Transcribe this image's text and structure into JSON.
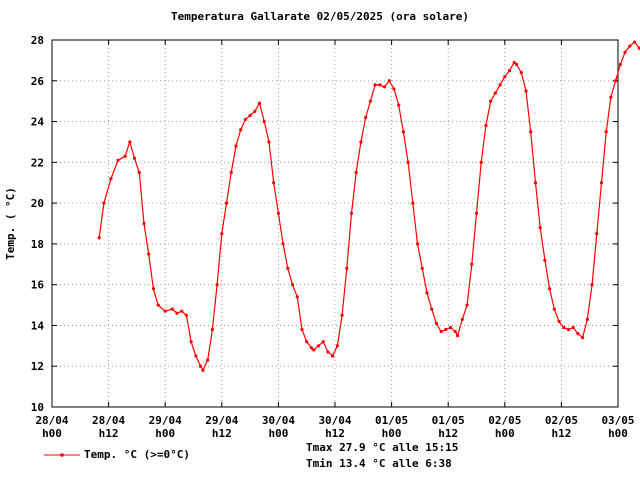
{
  "chart_data": {
    "type": "line",
    "title": "Temperatura Gallarate 02/05/2025 (ora solare)",
    "ylabel": "Temp. ( °C)",
    "ylim": [
      10,
      28
    ],
    "y_ticks": [
      "10",
      "12",
      "14",
      "16",
      "18",
      "20",
      "22",
      "24",
      "26",
      "28"
    ],
    "x_ticks": [
      {
        "day": "28/04",
        "hour": "h00"
      },
      {
        "day": "28/04",
        "hour": "h12"
      },
      {
        "day": "29/04",
        "hour": "h00"
      },
      {
        "day": "29/04",
        "hour": "h12"
      },
      {
        "day": "30/04",
        "hour": "h00"
      },
      {
        "day": "30/04",
        "hour": "h12"
      },
      {
        "day": "01/05",
        "hour": "h00"
      },
      {
        "day": "01/05",
        "hour": "h12"
      },
      {
        "day": "02/05",
        "hour": "h00"
      },
      {
        "day": "02/05",
        "hour": "h12"
      },
      {
        "day": "03/05",
        "hour": "h00"
      }
    ],
    "x_range_hours": [
      0,
      120
    ],
    "grid": true,
    "series": [
      {
        "name": "Temp. °C (>=0°C)",
        "color": "#ff0000",
        "points": [
          [
            10.0,
            18.3
          ],
          [
            11.0,
            20.0
          ],
          [
            12.5,
            21.2
          ],
          [
            14.0,
            22.1
          ],
          [
            15.5,
            22.3
          ],
          [
            16.5,
            23.0
          ],
          [
            17.5,
            22.2
          ],
          [
            18.5,
            21.5
          ],
          [
            19.5,
            19.0
          ],
          [
            20.5,
            17.5
          ],
          [
            21.5,
            15.8
          ],
          [
            22.5,
            15.0
          ],
          [
            24.0,
            14.7
          ],
          [
            25.5,
            14.8
          ],
          [
            26.5,
            14.6
          ],
          [
            27.5,
            14.7
          ],
          [
            28.5,
            14.5
          ],
          [
            29.5,
            13.2
          ],
          [
            30.5,
            12.5
          ],
          [
            31.5,
            12.0
          ],
          [
            32.0,
            11.8
          ],
          [
            33.0,
            12.3
          ],
          [
            34.0,
            13.8
          ],
          [
            35.0,
            16.0
          ],
          [
            36.0,
            18.5
          ],
          [
            37.0,
            20.0
          ],
          [
            38.0,
            21.5
          ],
          [
            39.0,
            22.8
          ],
          [
            40.0,
            23.6
          ],
          [
            41.0,
            24.1
          ],
          [
            42.0,
            24.3
          ],
          [
            43.0,
            24.5
          ],
          [
            44.0,
            24.9
          ],
          [
            45.0,
            24.0
          ],
          [
            46.0,
            23.0
          ],
          [
            47.0,
            21.0
          ],
          [
            48.0,
            19.5
          ],
          [
            49.0,
            18.0
          ],
          [
            50.0,
            16.8
          ],
          [
            51.0,
            16.0
          ],
          [
            52.0,
            15.4
          ],
          [
            53.0,
            13.8
          ],
          [
            54.0,
            13.2
          ],
          [
            55.0,
            12.9
          ],
          [
            55.5,
            12.8
          ],
          [
            56.5,
            13.0
          ],
          [
            57.5,
            13.2
          ],
          [
            58.5,
            12.7
          ],
          [
            59.5,
            12.5
          ],
          [
            60.5,
            13.0
          ],
          [
            61.5,
            14.5
          ],
          [
            62.5,
            16.8
          ],
          [
            63.5,
            19.5
          ],
          [
            64.5,
            21.5
          ],
          [
            65.5,
            23.0
          ],
          [
            66.5,
            24.2
          ],
          [
            67.5,
            25.0
          ],
          [
            68.5,
            25.8
          ],
          [
            69.5,
            25.8
          ],
          [
            70.5,
            25.7
          ],
          [
            71.5,
            26.0
          ],
          [
            72.5,
            25.6
          ],
          [
            73.5,
            24.8
          ],
          [
            74.5,
            23.5
          ],
          [
            75.5,
            22.0
          ],
          [
            76.5,
            20.0
          ],
          [
            77.5,
            18.0
          ],
          [
            78.5,
            16.8
          ],
          [
            79.5,
            15.6
          ],
          [
            80.5,
            14.8
          ],
          [
            81.5,
            14.1
          ],
          [
            82.5,
            13.7
          ],
          [
            83.5,
            13.8
          ],
          [
            84.5,
            13.9
          ],
          [
            85.5,
            13.7
          ],
          [
            86.0,
            13.5
          ],
          [
            87.0,
            14.3
          ],
          [
            88.0,
            15.0
          ],
          [
            89.0,
            17.0
          ],
          [
            90.0,
            19.5
          ],
          [
            91.0,
            22.0
          ],
          [
            92.0,
            23.8
          ],
          [
            93.0,
            25.0
          ],
          [
            94.0,
            25.4
          ],
          [
            95.0,
            25.8
          ],
          [
            96.0,
            26.2
          ],
          [
            97.0,
            26.5
          ],
          [
            98.0,
            26.9
          ],
          [
            98.5,
            26.8
          ],
          [
            99.5,
            26.4
          ],
          [
            100.5,
            25.5
          ],
          [
            101.5,
            23.5
          ],
          [
            102.5,
            21.0
          ],
          [
            103.5,
            18.8
          ],
          [
            104.5,
            17.2
          ],
          [
            105.5,
            15.8
          ],
          [
            106.5,
            14.8
          ],
          [
            107.5,
            14.2
          ],
          [
            108.5,
            13.9
          ],
          [
            109.5,
            13.8
          ],
          [
            110.5,
            13.9
          ],
          [
            111.5,
            13.6
          ],
          [
            112.5,
            13.4
          ],
          [
            113.5,
            14.3
          ],
          [
            114.5,
            16.0
          ],
          [
            115.5,
            18.5
          ],
          [
            116.5,
            21.0
          ],
          [
            117.5,
            23.5
          ],
          [
            118.5,
            25.2
          ],
          [
            119.5,
            26.0
          ],
          [
            120.5,
            26.8
          ],
          [
            121.5,
            27.4
          ],
          [
            122.5,
            27.7
          ],
          [
            123.5,
            27.9
          ],
          [
            124.5,
            27.6
          ],
          [
            125.5,
            27.2
          ],
          [
            126.0,
            26.8
          ]
        ]
      }
    ],
    "legend_label": "Temp. °C (>=0°C)",
    "stats": {
      "tmax": "Tmax 27.9 °C alle 15:15",
      "tmin": "Tmin 13.4 °C alle 6:38"
    }
  }
}
